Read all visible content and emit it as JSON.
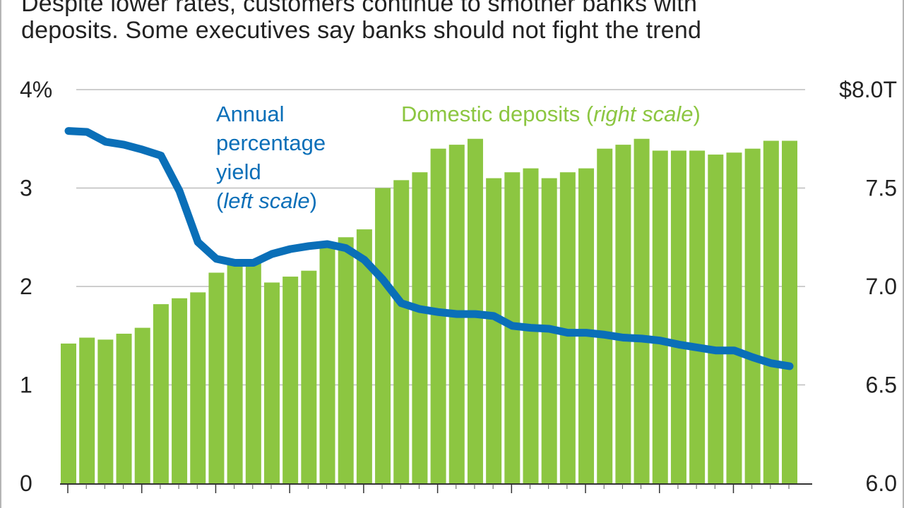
{
  "subtitle": {
    "line1": "Despite lower rates, customers continue to smother banks with",
    "line2": "deposits. Some executives say banks should not fight the trend"
  },
  "colors": {
    "bar": "#8cc641",
    "line": "#0a6fb8",
    "grid": "#bdbdbd",
    "text": "#222222"
  },
  "chart_data": {
    "type": "bar",
    "grid": true,
    "left_axis": {
      "ticks": [
        "0",
        "1",
        "2",
        "3",
        "4%"
      ],
      "values": [
        0,
        1,
        2,
        3,
        4
      ],
      "ylim": [
        0,
        4
      ]
    },
    "right_axis": {
      "ticks": [
        "6.0",
        "6.5",
        "7.0",
        "7.5",
        "$8.0T"
      ],
      "values": [
        6.0,
        6.5,
        7.0,
        7.5,
        8.0
      ],
      "ylim": [
        6.0,
        8.0
      ]
    },
    "series": [
      {
        "name": "Domestic deposits (right scale)",
        "name_parts": [
          "Domestic deposits (",
          "right scale",
          ")"
        ],
        "type": "bar",
        "axis": "right",
        "values": [
          6.71,
          6.74,
          6.73,
          6.76,
          6.79,
          6.91,
          6.94,
          6.97,
          7.07,
          7.11,
          7.12,
          7.02,
          7.05,
          7.08,
          7.22,
          7.25,
          7.29,
          7.5,
          7.54,
          7.58,
          7.7,
          7.72,
          7.75,
          7.55,
          7.58,
          7.6,
          7.55,
          7.58,
          7.6,
          7.7,
          7.72,
          7.75,
          7.69,
          7.69,
          7.69,
          7.67,
          7.68,
          7.7,
          7.74,
          7.74
        ]
      },
      {
        "name": "Annual percentage yield (left scale)",
        "name_lines": [
          "Annual",
          "percentage",
          "yield"
        ],
        "name_last_line": [
          "(",
          "left scale",
          ")"
        ],
        "type": "line",
        "axis": "left",
        "values": [
          3.58,
          3.57,
          3.47,
          3.44,
          3.39,
          3.33,
          2.97,
          2.45,
          2.28,
          2.24,
          2.24,
          2.33,
          2.38,
          2.41,
          2.43,
          2.39,
          2.27,
          2.07,
          1.83,
          1.77,
          1.74,
          1.72,
          1.72,
          1.7,
          1.6,
          1.58,
          1.57,
          1.53,
          1.53,
          1.51,
          1.48,
          1.47,
          1.45,
          1.41,
          1.38,
          1.35,
          1.35,
          1.28,
          1.22,
          1.19
        ]
      }
    ]
  }
}
